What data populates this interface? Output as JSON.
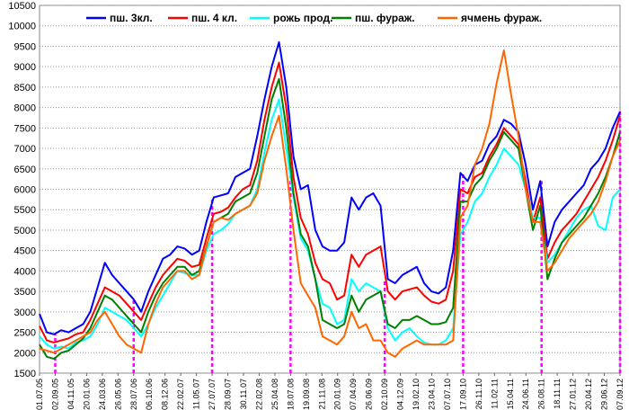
{
  "chart_data": {
    "type": "line",
    "title": "",
    "xlabel": "",
    "ylabel": "",
    "ylim": [
      1500,
      10500
    ],
    "yticks": [
      "1500",
      "2000",
      "2500",
      "3000",
      "3500",
      "4000",
      "4500",
      "5000",
      "5500",
      "6000",
      "6500",
      "7000",
      "7500",
      "8000",
      "8500",
      "9000",
      "9500",
      "10000",
      "10500"
    ],
    "grid": "horizontal dotted",
    "legend": "top",
    "x_start": "01.07.05",
    "x_end": "07.09.12",
    "xtick_labels": [
      "01.07.05",
      "02.09.05",
      "04.11.05",
      "20.01.06",
      "24.03.06",
      "26.05.06",
      "28.07.06",
      "06.10.06",
      "08.12.06",
      "22.02.07",
      "11.05.07",
      "27.07.07",
      "28.09.07",
      "30.11.07",
      "22.02.08",
      "25.04.08",
      "18.07.08",
      "19.09.08",
      "21.11.08",
      "20.01.09",
      "07.04.09",
      "26.06.09",
      "02.10.09",
      "04.12.09",
      "19.02.10",
      "23.04.10",
      "07.07.10",
      "17.09.10",
      "26.11.10",
      "11.02.11",
      "15.04.11",
      "24.06.11",
      "26.08.11",
      "18.11.11",
      "27.01.12",
      "20.04.12",
      "29.06.12",
      "07.09.12"
    ],
    "marker_dates": [
      "02.09.05",
      "28.07.06",
      "27.07.07",
      "18.07.08",
      "02.10.09",
      "17.09.10",
      "26.08.11",
      "07.09.12"
    ],
    "marker_color": "#ff00ff",
    "series": [
      {
        "name": "пш. 3кл.",
        "color": "#0000ff",
        "values": [
          2950,
          2500,
          2450,
          2550,
          2500,
          2600,
          2700,
          3000,
          3600,
          4200,
          3900,
          3700,
          3500,
          3300,
          3000,
          3500,
          3900,
          4300,
          4400,
          4600,
          4550,
          4400,
          4500,
          5200,
          5800,
          5850,
          5900,
          6300,
          6400,
          6500,
          7300,
          8200,
          9000,
          9600,
          8500,
          6800,
          6000,
          6100,
          5000,
          4600,
          4500,
          4500,
          4700,
          5800,
          5500,
          5800,
          5900,
          5600,
          3800,
          3700,
          3900,
          4000,
          4100,
          3700,
          3500,
          3450,
          3600,
          4500,
          6400,
          6200,
          6600,
          6700,
          7100,
          7300,
          7700,
          7600,
          7400,
          6600,
          5500,
          6200,
          4600,
          5200,
          5500,
          5700,
          5900,
          6100,
          6500,
          6700,
          7000,
          7500,
          7900
        ]
      },
      {
        "name": "пш. 4 кл.",
        "color": "#ff0000",
        "values": [
          2650,
          2300,
          2250,
          2300,
          2350,
          2450,
          2500,
          2800,
          3200,
          3600,
          3500,
          3400,
          3200,
          3000,
          2800,
          3200,
          3600,
          3900,
          4100,
          4300,
          4250,
          4100,
          4150,
          4800,
          5400,
          5450,
          5550,
          5800,
          6000,
          6100,
          6700,
          7700,
          8500,
          9100,
          8000,
          6300,
          5300,
          4900,
          4200,
          3800,
          3700,
          3300,
          3400,
          4400,
          4100,
          4400,
          4500,
          4600,
          3500,
          3300,
          3500,
          3550,
          3600,
          3400,
          3250,
          3200,
          3300,
          4000,
          6000,
          5900,
          6300,
          6400,
          6800,
          7100,
          7500,
          7300,
          7100,
          6200,
          5200,
          5800,
          4300,
          4700,
          5000,
          5200,
          5400,
          5700,
          6000,
          6300,
          6700,
          7200,
          7800
        ]
      },
      {
        "name": "рожь прод.",
        "color": "#00ffff",
        "values": [
          2400,
          2200,
          2100,
          2150,
          2100,
          2250,
          2300,
          2400,
          2700,
          3100,
          3000,
          2900,
          2800,
          2600,
          2400,
          2700,
          3100,
          3400,
          3700,
          4000,
          3950,
          3900,
          3900,
          4500,
          4900,
          5000,
          5150,
          5400,
          5500,
          5600,
          6000,
          6900,
          7700,
          8200,
          7000,
          5800,
          4800,
          4500,
          3800,
          3200,
          3100,
          2700,
          2800,
          3800,
          3500,
          3700,
          3600,
          3500,
          2600,
          2300,
          2500,
          2600,
          2400,
          2250,
          2200,
          2200,
          2300,
          2600,
          4900,
          5200,
          5700,
          5900,
          6300,
          6600,
          7000,
          6800,
          6600,
          6000,
          5300,
          5300,
          4200,
          4400,
          4700,
          5000,
          5300,
          5500,
          5600,
          5100,
          5000,
          5800,
          6000
        ]
      },
      {
        "name": "пш. фураж.",
        "color": "#008000",
        "values": [
          2200,
          1900,
          1850,
          2000,
          2050,
          2200,
          2350,
          2600,
          3000,
          3400,
          3300,
          3100,
          2900,
          2700,
          2500,
          3000,
          3400,
          3700,
          3900,
          4100,
          4100,
          3900,
          4000,
          4600,
          5200,
          5300,
          5400,
          5700,
          5800,
          5900,
          6400,
          7300,
          8200,
          8700,
          7500,
          5900,
          4900,
          4600,
          3800,
          2800,
          2700,
          2600,
          2700,
          3400,
          3000,
          3300,
          3400,
          3500,
          2700,
          2600,
          2800,
          2800,
          2900,
          2800,
          2700,
          2700,
          2750,
          3100,
          5700,
          5700,
          6100,
          6300,
          6700,
          7000,
          7400,
          7200,
          7000,
          6000,
          5000,
          5600,
          3800,
          4300,
          4700,
          4900,
          5100,
          5300,
          5600,
          5900,
          6300,
          6800,
          7400
        ]
      },
      {
        "name": "ячмень фураж.",
        "color": "#ff6600",
        "values": [
          2100,
          2050,
          2000,
          2100,
          2200,
          2300,
          2400,
          2500,
          2800,
          3000,
          2700,
          2400,
          2200,
          2100,
          2000,
          2700,
          3200,
          3600,
          3800,
          4000,
          4000,
          3800,
          3900,
          4600,
          5200,
          5300,
          5250,
          5400,
          5500,
          5600,
          5900,
          6700,
          7300,
          7800,
          6500,
          5000,
          3700,
          3400,
          3100,
          2400,
          2300,
          2200,
          2400,
          3000,
          2600,
          2700,
          2300,
          2300,
          2000,
          1900,
          2100,
          2200,
          2300,
          2200,
          2200,
          2200,
          2200,
          2300,
          5300,
          5600,
          6600,
          7000,
          7600,
          8600,
          9400,
          8300,
          7300,
          6000,
          5200,
          5200,
          4000,
          4200,
          4500,
          4800,
          5000,
          5200,
          5400,
          5700,
          6200,
          6800,
          7200
        ]
      }
    ]
  }
}
